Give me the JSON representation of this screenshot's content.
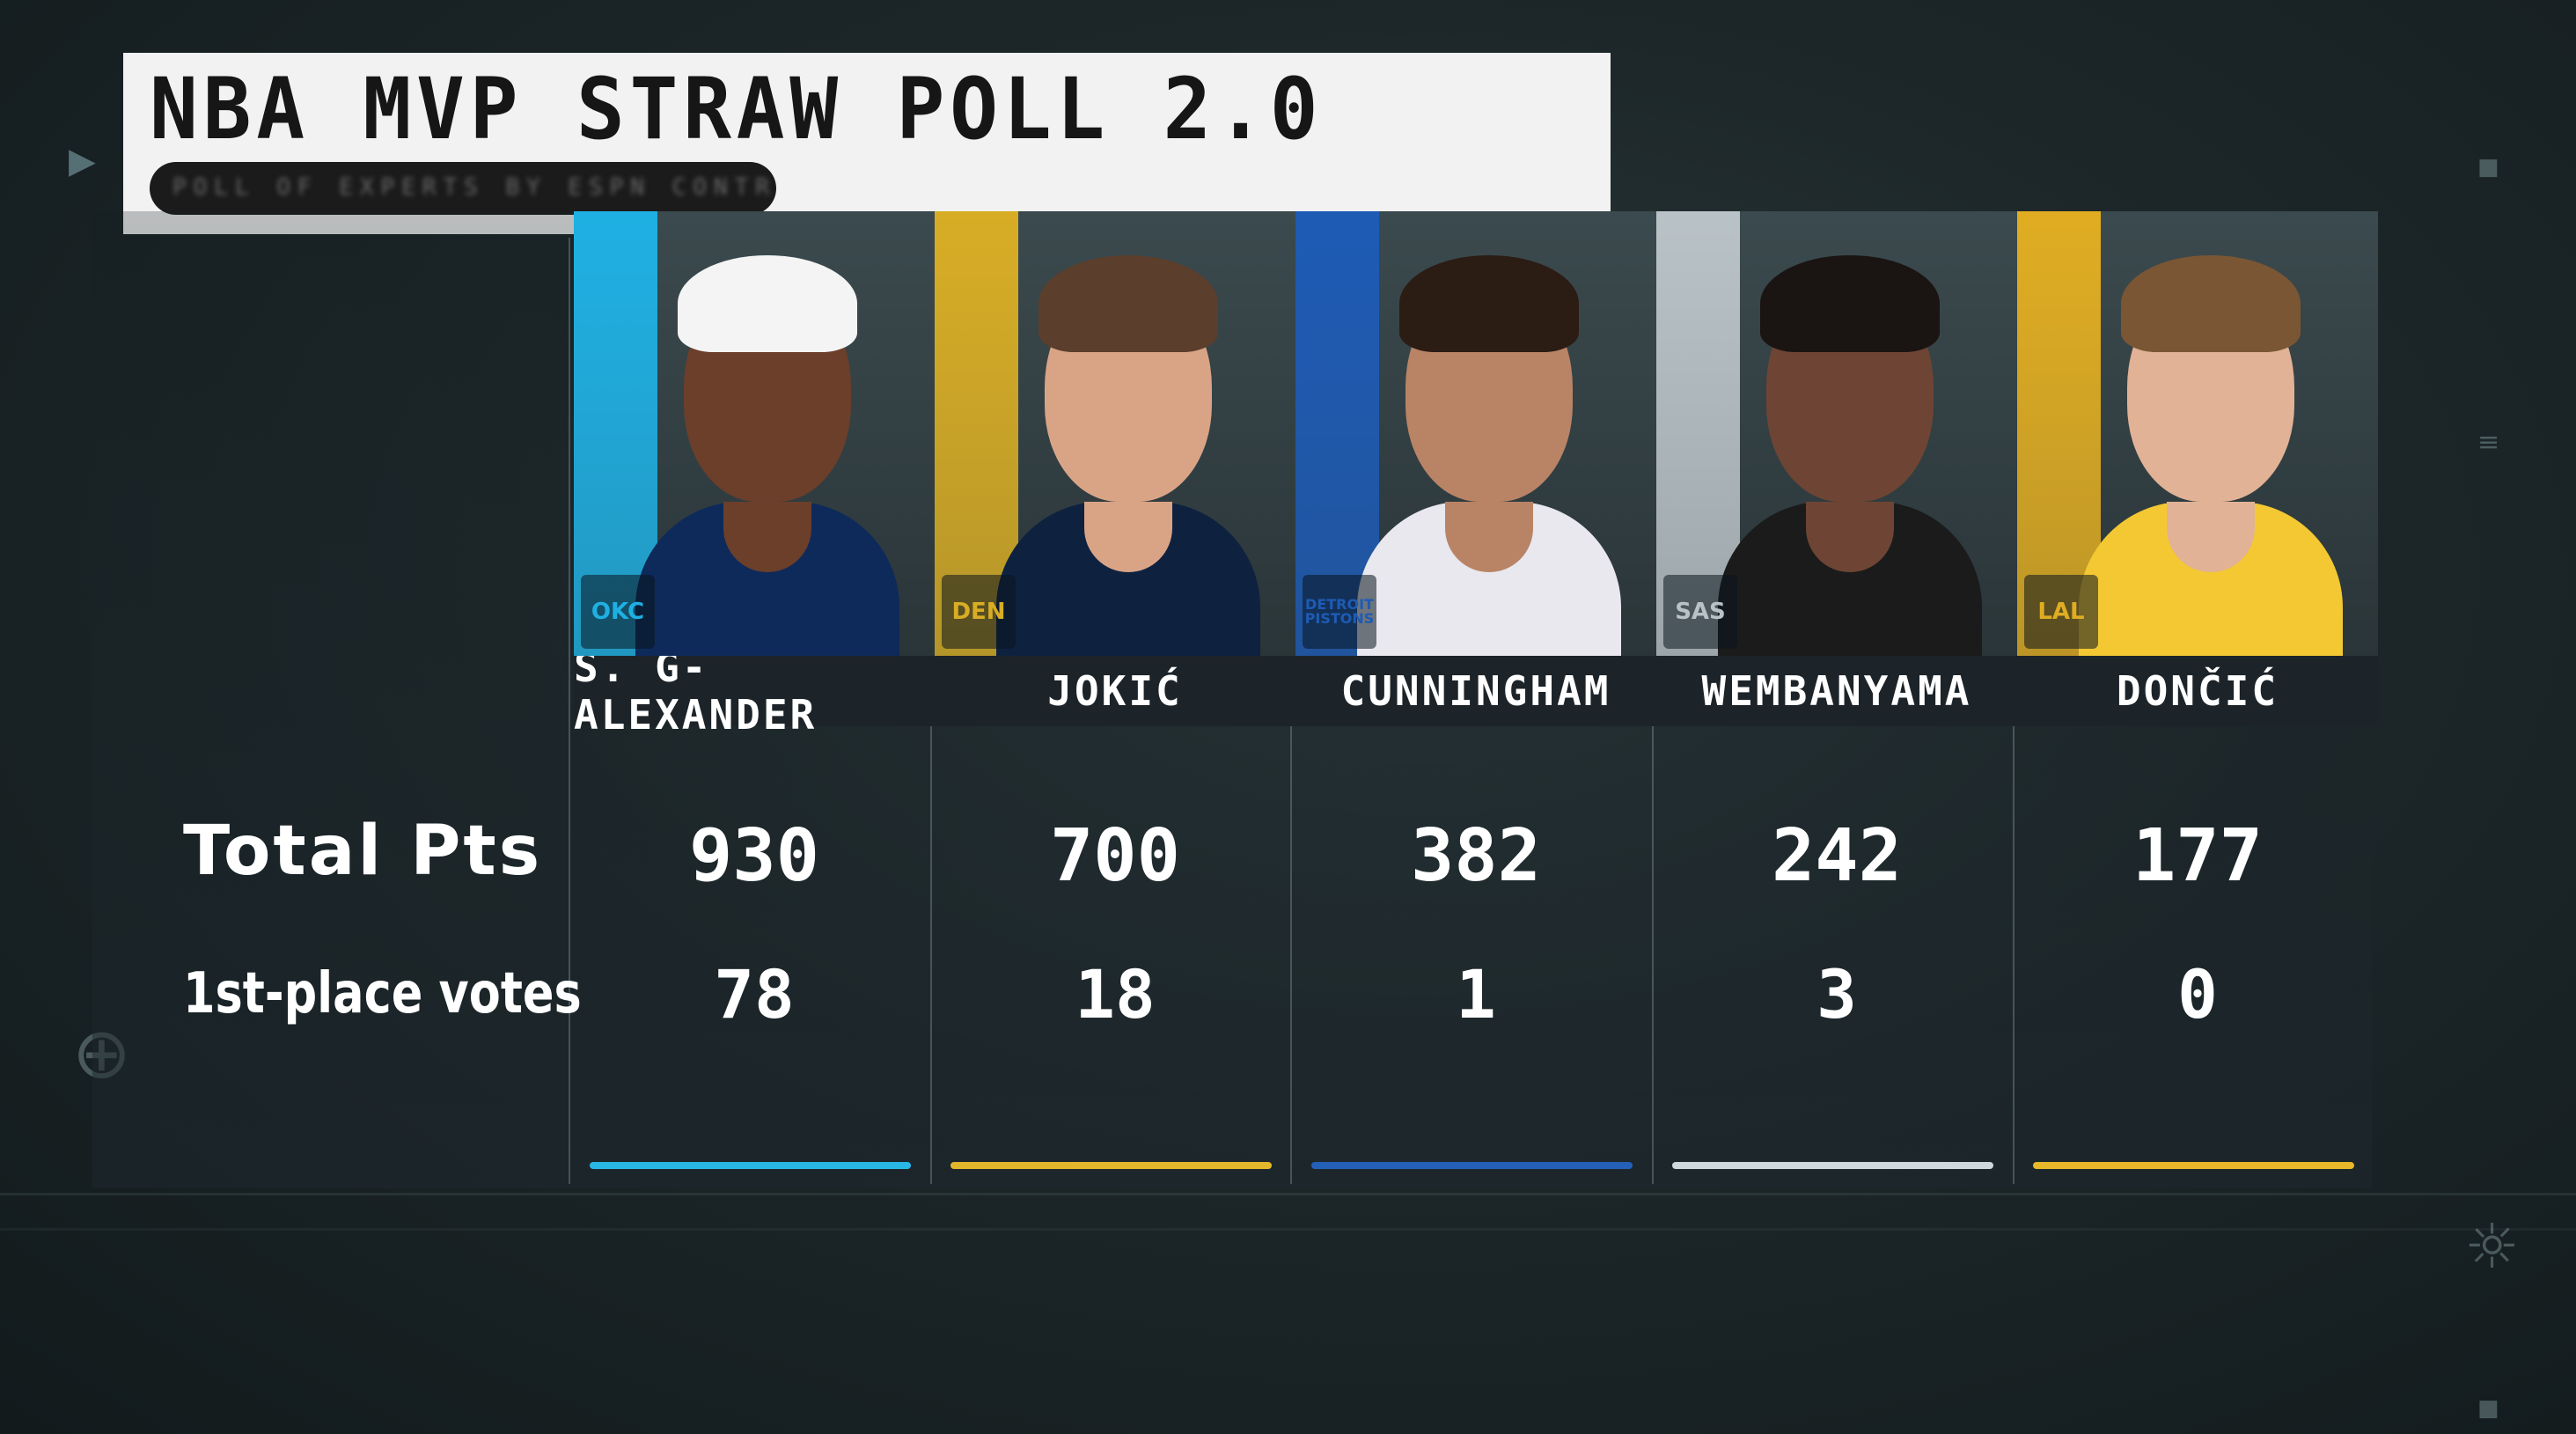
{
  "title": "NBA MVP STRAW POLL 2.0",
  "subtitle_redacted": "POLL OF EXPERTS BY ESPN CONTRIBUTORS",
  "row_labels": {
    "total": "Total Pts",
    "votes": "1st-place votes"
  },
  "players": [
    {
      "name": "S. G-ALEXANDER",
      "team_logo": "OKC",
      "total": "930",
      "votes": "78",
      "color": "#29b8e6",
      "strip": "#1fb0e3",
      "jersey": "#0e2a5a"
    },
    {
      "name": "JOKIĆ",
      "team_logo": "DEN",
      "total": "700",
      "votes": "18",
      "color": "#e3b72b",
      "strip": "#d8ad25",
      "jersey": "#0e2240"
    },
    {
      "name": "CUNNINGHAM",
      "team_logo": "DETROIT PISTONS",
      "total": "382",
      "votes": "1",
      "color": "#2460b8",
      "strip": "#1e5bb5",
      "jersey": "#e8e8ee"
    },
    {
      "name": "WEMBANYAMA",
      "team_logo": "SAS",
      "total": "242",
      "votes": "3",
      "color": "#cfd8df",
      "strip": "#b9c2c6",
      "jersey": "#1b1b1b"
    },
    {
      "name": "DONČIĆ",
      "team_logo": "LAL",
      "total": "177",
      "votes": "0",
      "color": "#e8b82a",
      "strip": "#e0ad22",
      "jersey": "#f4c833"
    }
  ]
}
